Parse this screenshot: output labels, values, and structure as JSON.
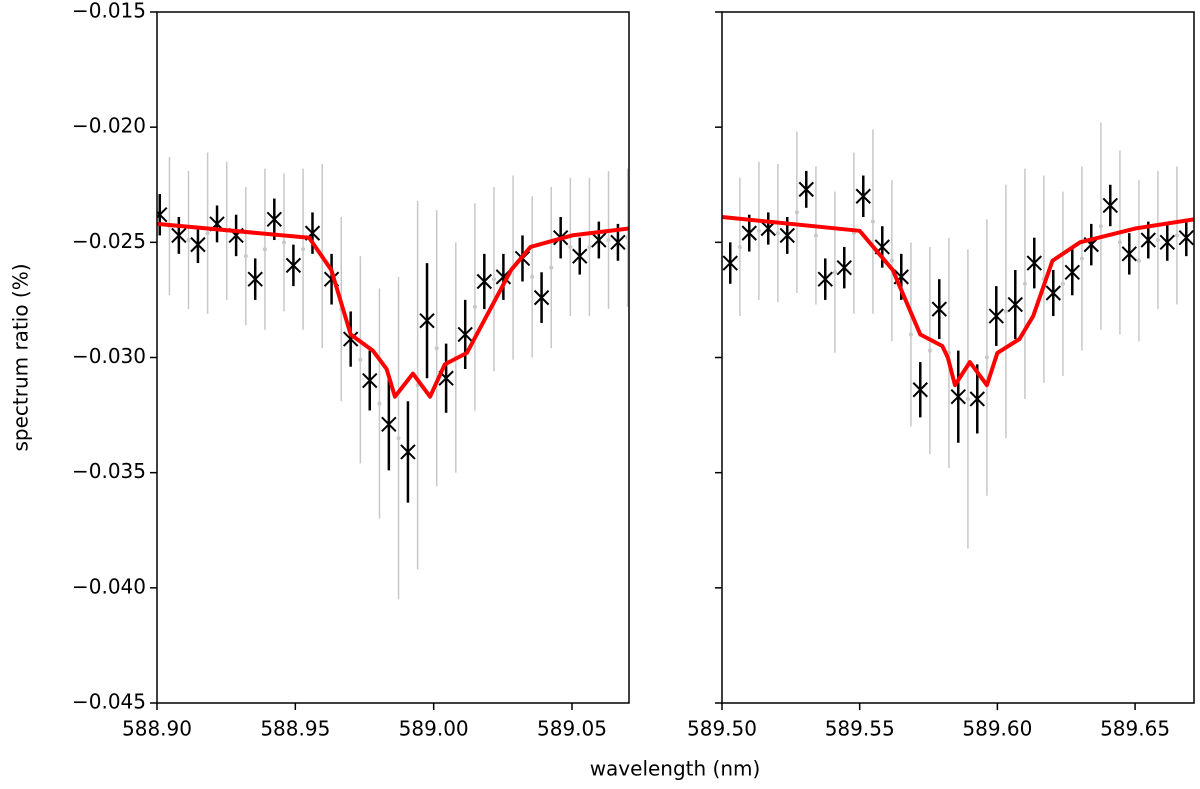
{
  "xlabel": "wavelength (nm)",
  "chart_data": [
    {
      "type": "errorbar",
      "ylabel": "spectrum ratio (%)",
      "xlim": [
        588.9,
        589.0706
      ],
      "xticks": [
        {
          "value": 588.9,
          "label": "588.90"
        },
        {
          "value": 588.95,
          "label": "588.95"
        },
        {
          "value": 589.0,
          "label": "589.00"
        },
        {
          "value": 589.05,
          "label": "589.05"
        }
      ],
      "ylim": [
        -0.045,
        -0.015
      ],
      "yticks": [
        {
          "value": -0.045,
          "label": "−0.045"
        },
        {
          "value": -0.04,
          "label": "−0.040"
        },
        {
          "value": -0.035,
          "label": "−0.035"
        },
        {
          "value": -0.03,
          "label": "−0.030"
        },
        {
          "value": -0.025,
          "label": "−0.025"
        },
        {
          "value": -0.02,
          "label": "−0.020"
        },
        {
          "value": -0.015,
          "label": "−0.015"
        }
      ],
      "series": [
        {
          "color": "#c8c8c8",
          "marker": "dot",
          "x": [
            588.9045,
            588.9114,
            588.9183,
            588.9252,
            588.9321,
            588.939,
            588.9459,
            588.9528,
            588.9597,
            588.9666,
            588.9735,
            588.9804,
            588.9873,
            588.9942,
            589.0011,
            589.008,
            589.0149,
            589.0218,
            589.0287,
            589.0356,
            589.0425,
            589.0494,
            589.0563,
            589.0632,
            589.0701
          ],
          "values": [
            -0.0243,
            -0.0249,
            -0.0246,
            -0.0245,
            -0.0256,
            -0.0253,
            -0.025,
            -0.0253,
            -0.0256,
            -0.0279,
            -0.0301,
            -0.032,
            -0.0335,
            -0.0312,
            -0.0296,
            -0.03,
            -0.0278,
            -0.0266,
            -0.0261,
            -0.0265,
            -0.0261,
            -0.0252,
            -0.0252,
            -0.0249,
            -0.0248
          ],
          "errors": [
            0.003,
            0.003,
            0.0035,
            0.003,
            0.003,
            0.0035,
            0.003,
            0.0035,
            0.004,
            0.004,
            0.0045,
            0.005,
            0.007,
            0.008,
            0.006,
            0.005,
            0.0045,
            0.004,
            0.004,
            0.0035,
            0.0035,
            0.003,
            0.003,
            0.003,
            0.003
          ]
        },
        {
          "color": "#000000",
          "marker": "x",
          "x": [
            588.901,
            588.9079,
            588.9148,
            588.9217,
            588.9286,
            588.9355,
            588.9424,
            588.9493,
            588.9562,
            588.9631,
            588.97,
            588.9769,
            588.9838,
            588.9907,
            588.9976,
            589.0045,
            589.0114,
            589.0183,
            589.0252,
            589.0321,
            589.039,
            589.0459,
            589.0528,
            589.0597,
            589.0666
          ],
          "values": [
            -0.0238,
            -0.0247,
            -0.0251,
            -0.0242,
            -0.0247,
            -0.0266,
            -0.024,
            -0.026,
            -0.0246,
            -0.0266,
            -0.0292,
            -0.031,
            -0.0329,
            -0.0341,
            -0.0284,
            -0.0309,
            -0.029,
            -0.0267,
            -0.0265,
            -0.0257,
            -0.0274,
            -0.0248,
            -0.0256,
            -0.0249,
            -0.025
          ],
          "errors": [
            0.0009,
            0.0008,
            0.0008,
            0.0008,
            0.0009,
            0.0009,
            0.0009,
            0.0009,
            0.0009,
            0.0011,
            0.0012,
            0.0013,
            0.002,
            0.0022,
            0.0025,
            0.0015,
            0.0015,
            0.0012,
            0.001,
            0.001,
            0.0011,
            0.0009,
            0.0008,
            0.0008,
            0.0008
          ]
        },
        {
          "color": "#ff0000",
          "marker": "line",
          "x": [
            588.9,
            588.955,
            588.963,
            588.97,
            588.978,
            588.983,
            588.986,
            588.9925,
            588.9987,
            589.004,
            589.012,
            589.02,
            589.028,
            589.035,
            589.05,
            589.0706
          ],
          "values": [
            -0.0242,
            -0.0248,
            -0.0262,
            -0.029,
            -0.0297,
            -0.0305,
            -0.0317,
            -0.0307,
            -0.0317,
            -0.0303,
            -0.0298,
            -0.028,
            -0.0262,
            -0.0252,
            -0.0247,
            -0.0244
          ]
        }
      ]
    },
    {
      "type": "errorbar",
      "sharey": true,
      "xlim": [
        589.5,
        589.6714
      ],
      "xticks": [
        {
          "value": 589.5,
          "label": "589.50"
        },
        {
          "value": 589.55,
          "label": "589.55"
        },
        {
          "value": 589.6,
          "label": "589.60"
        },
        {
          "value": 589.65,
          "label": "589.65"
        }
      ],
      "series": [
        {
          "color": "#c8c8c8",
          "marker": "dot",
          "x": [
            589.5065,
            589.5134,
            589.5203,
            589.5272,
            589.5341,
            589.541,
            589.5479,
            589.5548,
            589.5617,
            589.5686,
            589.5755,
            589.5824,
            589.5893,
            589.5962,
            589.6031,
            589.61,
            589.6169,
            589.6238,
            589.6307,
            589.6376,
            589.6445,
            589.6514,
            589.6583,
            589.6652,
            589.6721
          ],
          "values": [
            -0.0252,
            -0.0245,
            -0.0246,
            -0.0237,
            -0.0247,
            -0.0263,
            -0.0246,
            -0.0241,
            -0.0258,
            -0.029,
            -0.0297,
            -0.0298,
            -0.0318,
            -0.03,
            -0.028,
            -0.0268,
            -0.0266,
            -0.0268,
            -0.0257,
            -0.0243,
            -0.025,
            -0.0258,
            -0.0249,
            -0.0247,
            -0.0245
          ],
          "errors": [
            0.003,
            0.003,
            0.003,
            0.0035,
            0.003,
            0.0035,
            0.0035,
            0.004,
            0.0035,
            0.004,
            0.0045,
            0.005,
            0.0065,
            0.006,
            0.0055,
            0.005,
            0.0045,
            0.004,
            0.004,
            0.0045,
            0.004,
            0.0035,
            0.003,
            0.003,
            0.003
          ]
        },
        {
          "color": "#000000",
          "marker": "x",
          "x": [
            589.503,
            589.5099,
            589.5168,
            589.5237,
            589.5306,
            589.5375,
            589.5444,
            589.5513,
            589.5582,
            589.5651,
            589.572,
            589.5789,
            589.5858,
            589.5927,
            589.5996,
            589.6065,
            589.6134,
            589.6203,
            589.6272,
            589.6341,
            589.641,
            589.6479,
            589.6548,
            589.6617,
            589.6686
          ],
          "values": [
            -0.0259,
            -0.0246,
            -0.0244,
            -0.0247,
            -0.0227,
            -0.0266,
            -0.0261,
            -0.023,
            -0.0252,
            -0.0265,
            -0.0314,
            -0.0279,
            -0.0317,
            -0.0318,
            -0.0282,
            -0.0277,
            -0.0259,
            -0.0272,
            -0.0263,
            -0.0251,
            -0.0234,
            -0.0255,
            -0.0249,
            -0.025,
            -0.0248
          ],
          "errors": [
            0.0009,
            0.0008,
            0.0007,
            0.0008,
            0.0008,
            0.0009,
            0.0009,
            0.0009,
            0.0009,
            0.001,
            0.0012,
            0.0013,
            0.002,
            0.0015,
            0.0013,
            0.0015,
            0.0011,
            0.001,
            0.001,
            0.0009,
            0.0009,
            0.0009,
            0.0008,
            0.0008,
            0.0008
          ]
        },
        {
          "color": "#ff0000",
          "marker": "line",
          "x": [
            589.5,
            589.55,
            589.562,
            589.572,
            589.58,
            589.582,
            589.5846,
            589.59,
            589.5962,
            589.6,
            589.608,
            589.613,
            589.62,
            589.63,
            589.65,
            589.6714
          ],
          "values": [
            -0.0239,
            -0.0245,
            -0.0262,
            -0.029,
            -0.0295,
            -0.03,
            -0.0312,
            -0.0302,
            -0.0312,
            -0.0298,
            -0.0292,
            -0.0282,
            -0.0258,
            -0.025,
            -0.0244,
            -0.024
          ]
        }
      ]
    }
  ]
}
